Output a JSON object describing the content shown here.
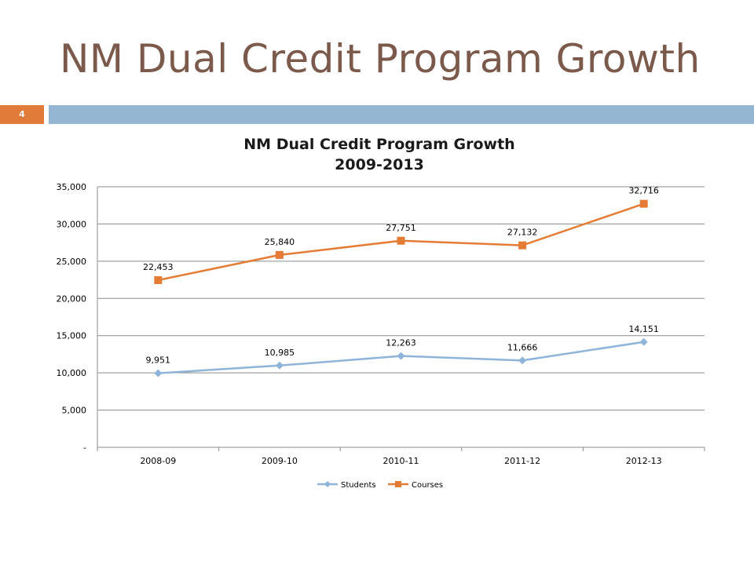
{
  "slide": {
    "title": "NM Dual Credit Program Growth",
    "number": "4"
  },
  "colors": {
    "title": "#7b5a4b",
    "accent_orange": "#e07b39",
    "header_bar_blue": "#94b6d2",
    "students_series": "#8fb4d9",
    "courses_series": "#e57c35"
  },
  "chart_data": {
    "type": "line",
    "title": "NM Dual Credit Program Growth",
    "subtitle": "2009-2013",
    "categories": [
      "2008-09",
      "2009-10",
      "2010-11",
      "2011-12",
      "2012-13"
    ],
    "series": [
      {
        "name": "Students",
        "values": [
          9951,
          10985,
          12263,
          11666,
          14151
        ],
        "labels": [
          "9,951",
          "10,985",
          "12,263",
          "11,666",
          "14,151"
        ],
        "marker": "diamond",
        "color": "#8fb4d9"
      },
      {
        "name": "Courses",
        "values": [
          22453,
          25840,
          27751,
          27132,
          32716
        ],
        "labels": [
          "22,453",
          "25,840",
          "27,751",
          "27,132",
          "32,716"
        ],
        "marker": "square",
        "color": "#e57c35"
      }
    ],
    "ylim": [
      0,
      35000
    ],
    "yticks": [
      0,
      5000,
      10000,
      15000,
      20000,
      25000,
      30000,
      35000
    ],
    "ytick_labels": [
      "-",
      "5,000",
      "10,000",
      "15,000",
      "20,000",
      "25,000",
      "30,000",
      "35,000"
    ],
    "grid": true,
    "legend_position": "bottom"
  }
}
